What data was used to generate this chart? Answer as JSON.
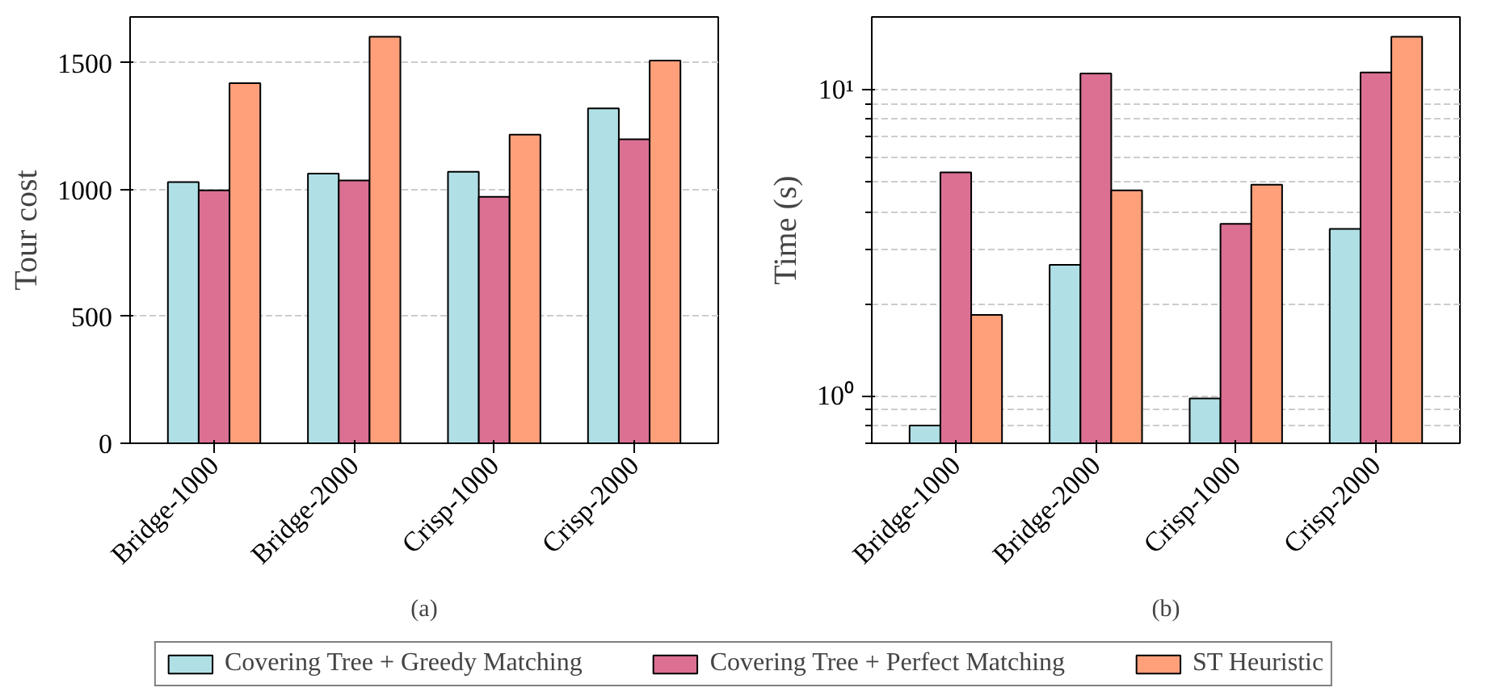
{
  "chart_data": [
    {
      "type": "bar",
      "ylabel": "Tour cost",
      "annotations": [
        "(a)"
      ],
      "categories": [
        "Bridge-1000",
        "Bridge-2000",
        "Crisp-1000",
        "Crisp-2000"
      ],
      "ylim": [
        0,
        1680
      ],
      "yticks": [
        0,
        500,
        1000,
        1500
      ],
      "grid": "y",
      "legend": "bottom",
      "series": [
        {
          "name": "Covering Tree + Greedy Matching",
          "color": "#b0e0e6",
          "values": [
            1029,
            1063,
            1070,
            1320
          ]
        },
        {
          "name": "Covering Tree + Perfect Matching",
          "color": "#db7093",
          "values": [
            997,
            1036,
            971,
            1198
          ]
        },
        {
          "name": "ST Heuristic",
          "color": "#ffa07a",
          "values": [
            1419,
            1602,
            1216,
            1508
          ]
        }
      ]
    },
    {
      "type": "bar",
      "ylabel": "Time (s)",
      "annotations": [
        "(b)"
      ],
      "categories": [
        "Bridge-1000",
        "Bridge-2000",
        "Crisp-1000",
        "Crisp-2000"
      ],
      "log": "y",
      "ylim": [
        0.7,
        17.3
      ],
      "yticks": [
        {
          "value": 0.7,
          "label": null
        },
        {
          "value": 0.8,
          "label": null
        },
        {
          "value": 0.9,
          "label": null
        },
        {
          "value": 1,
          "label": "10⁰"
        },
        {
          "value": 2,
          "label": null
        },
        {
          "value": 3,
          "label": null
        },
        {
          "value": 4,
          "label": null
        },
        {
          "value": 5,
          "label": null
        },
        {
          "value": 6,
          "label": null
        },
        {
          "value": 7,
          "label": null
        },
        {
          "value": 8,
          "label": null
        },
        {
          "value": 9,
          "label": null
        },
        {
          "value": 10,
          "label": "10¹"
        }
      ],
      "grid": "y",
      "series": [
        {
          "color": "#b0e0e6",
          "values": [
            0.8,
            2.68,
            0.98,
            3.51
          ]
        },
        {
          "color": "#db7093",
          "values": [
            5.37,
            11.3,
            3.65,
            11.4
          ]
        },
        {
          "color": "#ffa07a",
          "values": [
            1.84,
            4.69,
            4.9,
            14.9
          ]
        }
      ]
    }
  ]
}
